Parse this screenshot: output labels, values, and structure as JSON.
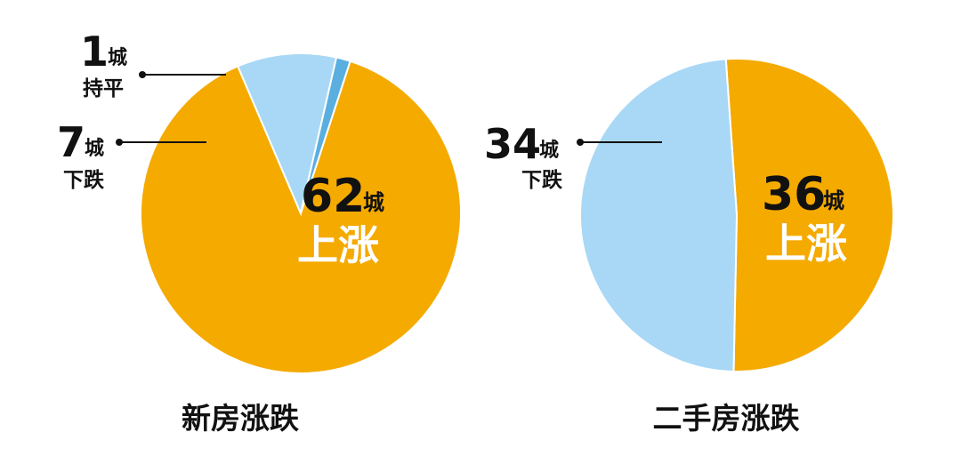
{
  "chart_data": [
    {
      "type": "pie",
      "caption": "新房涨跌",
      "slices": [
        {
          "value": 62,
          "number": "62",
          "unit": "城",
          "label": "上涨",
          "color": "#F5AA00"
        },
        {
          "value": 7,
          "number": "7",
          "unit": "城",
          "label": "下跌",
          "color": "#A8D8F5"
        },
        {
          "value": 1,
          "number": "1",
          "unit": "城",
          "label": "持平",
          "color": "#5AAFE0"
        }
      ]
    },
    {
      "type": "pie",
      "caption": "二手房涨跌",
      "slices": [
        {
          "value": 36,
          "number": "36",
          "unit": "城",
          "label": "上涨",
          "color": "#F5AA00"
        },
        {
          "value": 34,
          "number": "34",
          "unit": "城",
          "label": "下跌",
          "color": "#A8D8F5"
        }
      ]
    }
  ]
}
